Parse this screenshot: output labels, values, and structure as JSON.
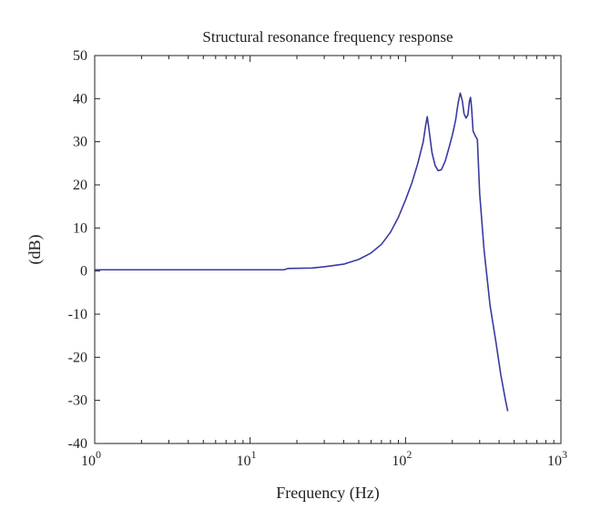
{
  "chart_data": {
    "type": "line",
    "title": "Structural resonance frequency response",
    "xlabel": "Frequency (Hz)",
    "ylabel": "(dB)",
    "x_scale": "log",
    "xlim": [
      1,
      1000
    ],
    "ylim": [
      -40,
      50
    ],
    "x_ticks": [
      {
        "value": 1,
        "base": "10",
        "exp": "0"
      },
      {
        "value": 10,
        "base": "10",
        "exp": "1"
      },
      {
        "value": 100,
        "base": "10",
        "exp": "2"
      },
      {
        "value": 1000,
        "base": "10",
        "exp": "3"
      }
    ],
    "y_ticks": [
      -40,
      -30,
      -20,
      -10,
      0,
      10,
      20,
      30,
      40,
      50
    ],
    "grid": false,
    "line_color": "#3a3aa0",
    "series": [
      {
        "x": [
          1,
          2,
          5,
          10,
          16.5,
          17.5,
          25,
          30,
          40,
          50,
          60,
          70,
          80,
          90,
          100,
          110,
          120,
          130,
          135,
          138,
          142,
          148,
          155,
          162,
          170,
          180,
          190,
          200,
          210,
          218,
          225,
          232,
          238,
          245,
          252,
          258,
          262,
          266,
          272,
          280,
          290,
          300,
          320,
          350,
          380,
          410,
          440,
          455
        ],
        "y": [
          0.3,
          0.3,
          0.3,
          0.3,
          0.3,
          0.6,
          0.7,
          1.0,
          1.6,
          2.7,
          4.2,
          6.2,
          9.0,
          12.5,
          16.5,
          20.5,
          25.0,
          30.0,
          34.0,
          35.8,
          32.5,
          27.5,
          24.5,
          23.3,
          23.5,
          25.5,
          28.5,
          31.5,
          35.0,
          39.0,
          41.3,
          39.5,
          36.5,
          35.5,
          36.2,
          39.5,
          40.3,
          38.0,
          32.5,
          31.5,
          30.5,
          18.0,
          5.0,
          -8.0,
          -16.0,
          -24.0,
          -30.0,
          -32.5
        ]
      }
    ]
  }
}
